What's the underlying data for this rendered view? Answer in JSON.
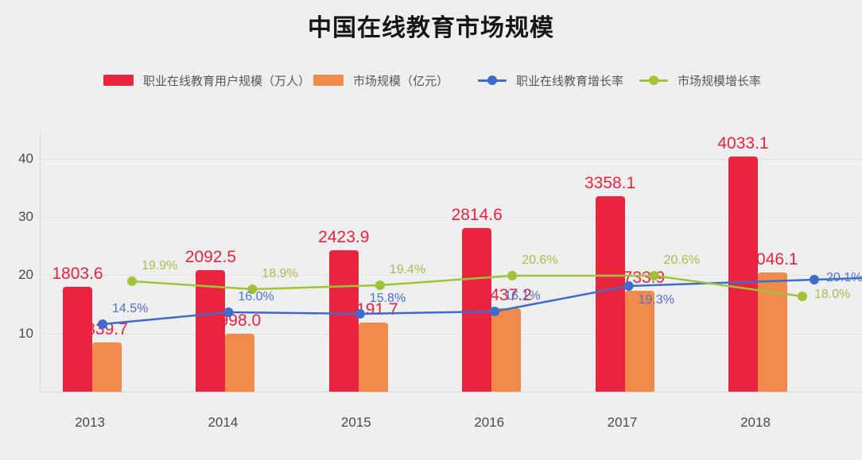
{
  "title": "中国在线教育市场规模",
  "chart_data": {
    "type": "bar",
    "subtype": "bar-line-combo",
    "categories": [
      "2013",
      "2014",
      "2015",
      "2016",
      "2017",
      "2018"
    ],
    "series": [
      {
        "name": "职业在线教育用户规模（万人）",
        "kind": "bar",
        "color": "#e8243f",
        "label_color": "#e8243f",
        "values": [
          1803.6,
          2092.5,
          2423.9,
          2814.6,
          3358.1,
          4033.1
        ]
      },
      {
        "name": "市场规模（亿元）",
        "kind": "bar",
        "color": "#f18a4b",
        "label_color": "#e8243f",
        "values": [
          839.7,
          998.0,
          1191.7,
          1437.2,
          1733.9,
          2046.1
        ]
      },
      {
        "name": "职业在线教育增长率",
        "kind": "line",
        "color": "#3d6ccc",
        "label_color": "#4a72cf",
        "values": [
          14.5,
          16.0,
          15.8,
          16.1,
          19.3,
          20.1
        ],
        "labels": [
          "14.5%",
          "16.0%",
          "15.8%",
          "16.1%",
          "19.3%",
          "20.1%"
        ],
        "dx": [
          16,
          7,
          5,
          7,
          8,
          74
        ],
        "label_side": [
          "above",
          "above",
          "above",
          "above",
          "below",
          "right"
        ],
        "extend_right": true
      },
      {
        "name": "市场规模增长率",
        "kind": "line",
        "color": "#9fc43a",
        "label_color": "#a4bf50",
        "values": [
          19.9,
          18.9,
          19.4,
          20.6,
          20.6,
          18.0
        ],
        "labels": [
          "19.9%",
          "18.9%",
          "19.4%",
          "20.6%",
          "20.6%",
          "18.0%"
        ],
        "dx": [
          53,
          37,
          30,
          29,
          40,
          59
        ],
        "label_side": [
          "above",
          "above",
          "above",
          "above",
          "above",
          "right"
        ],
        "extend_right": false
      }
    ],
    "xlabel": "",
    "ylabel": "",
    "yticks": [
      10,
      20,
      30,
      40
    ],
    "ylim": [
      0,
      45
    ],
    "y2lim": [
      6,
      39
    ],
    "bar_axis_scale": 100,
    "grid": true,
    "legend_position": "top",
    "background": "#efefef"
  }
}
